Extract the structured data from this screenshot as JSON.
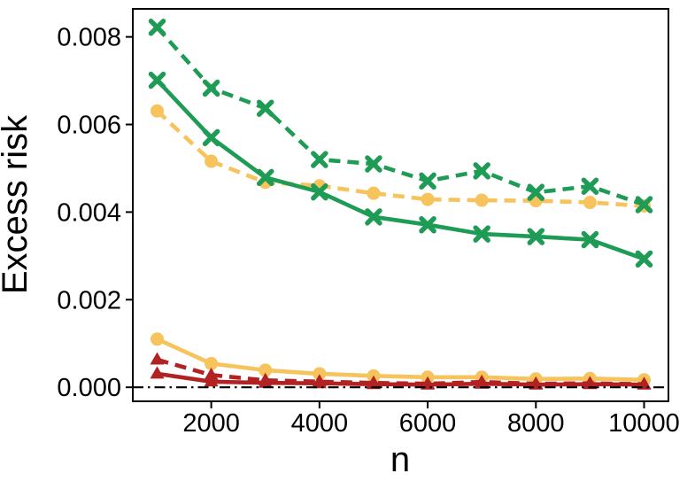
{
  "figure": {
    "background": "#ffffff"
  },
  "chart_data": {
    "type": "line",
    "title": "",
    "xlabel": "n",
    "ylabel": "Excess risk",
    "grid": false,
    "legend": "none",
    "xlim": [
      550,
      10450
    ],
    "ylim": [
      -0.00032,
      0.00864
    ],
    "x": [
      1000,
      2000,
      3000,
      4000,
      5000,
      6000,
      7000,
      8000,
      9000,
      10000
    ],
    "xticks": {
      "values": [
        2000,
        4000,
        6000,
        8000,
        10000
      ],
      "labels": [
        "2000",
        "4000",
        "6000",
        "8000",
        "10000"
      ]
    },
    "yticks": {
      "values": [
        0.0,
        0.002,
        0.004,
        0.006,
        0.008
      ],
      "labels": [
        "0.000",
        "0.002",
        "0.004",
        "0.006",
        "0.008"
      ]
    },
    "reference_line": {
      "y": 0.0,
      "color": "#000000",
      "linestyle": "dashdot"
    },
    "series": [
      {
        "id": "yellow-solid",
        "color": "#f6c35c",
        "linestyle": "solid",
        "marker": "o",
        "values": [
          0.0011,
          0.00054,
          0.00039,
          0.00031,
          0.00026,
          0.00023,
          0.00023,
          0.00019,
          0.0002,
          0.00017
        ]
      },
      {
        "id": "yellow-dashed",
        "color": "#f6c35c",
        "linestyle": "dashed",
        "marker": "o",
        "values": [
          0.00631,
          0.00516,
          0.00468,
          0.0046,
          0.00443,
          0.00429,
          0.00427,
          0.00426,
          0.00422,
          0.00414
        ]
      },
      {
        "id": "green-solid",
        "color": "#1e9b55",
        "linestyle": "solid",
        "marker": "X",
        "values": [
          0.00701,
          0.0057,
          0.00479,
          0.00446,
          0.00389,
          0.00371,
          0.0035,
          0.00344,
          0.00337,
          0.00293
        ]
      },
      {
        "id": "green-dashed",
        "color": "#1e9b55",
        "linestyle": "dashed",
        "marker": "X",
        "values": [
          0.00822,
          0.00683,
          0.00637,
          0.0052,
          0.0051,
          0.00471,
          0.00494,
          0.00445,
          0.00459,
          0.00417
        ]
      },
      {
        "id": "red-solid",
        "color": "#b22222",
        "linestyle": "solid",
        "marker": "^",
        "values": [
          0.00031,
          0.00013,
          0.0001,
          9e-05,
          7e-05,
          6e-05,
          8e-05,
          6e-05,
          7e-05,
          6e-05
        ]
      },
      {
        "id": "red-dashed",
        "color": "#b22222",
        "linestyle": "dashed",
        "marker": "^",
        "values": [
          0.00063,
          0.00028,
          0.00016,
          0.00013,
          0.0001,
          8e-05,
          0.00012,
          8e-05,
          9e-05,
          7e-05
        ]
      }
    ]
  }
}
